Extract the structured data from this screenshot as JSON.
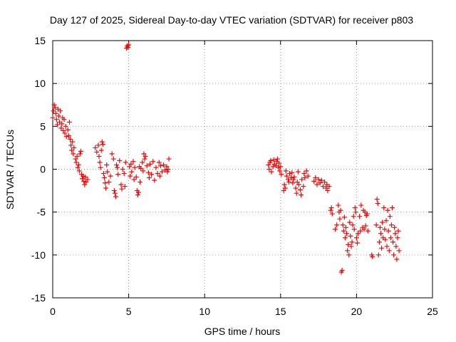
{
  "chart_data": {
    "type": "scatter",
    "title": "Day 127 of 2025, Sidereal Day-to-day VTEC variation (SDTVAR) for receiver p803",
    "xlabel": "GPS time / hours",
    "ylabel": "SDTVAR / TECUs",
    "xlim": [
      0,
      25
    ],
    "ylim": [
      -15,
      15
    ],
    "xticks": [
      0,
      5,
      10,
      15,
      20,
      25
    ],
    "xtick_labels": [
      "0",
      "5",
      "10",
      "15",
      "20",
      "25"
    ],
    "yticks": [
      -15,
      -10,
      -5,
      0,
      5,
      10,
      15
    ],
    "ytick_labels": [
      "-15",
      "-10",
      "-5",
      "0",
      "5",
      "10",
      "15"
    ],
    "grid": true,
    "marker": "+",
    "color": "#ff0000",
    "series": [
      {
        "name": "SDTVAR",
        "points": [
          [
            0.0,
            6.0
          ],
          [
            0.05,
            6.8
          ],
          [
            0.1,
            7.5
          ],
          [
            0.15,
            7.2
          ],
          [
            0.2,
            6.5
          ],
          [
            0.25,
            5.8
          ],
          [
            0.3,
            5.2
          ],
          [
            0.35,
            7.0
          ],
          [
            0.4,
            6.2
          ],
          [
            0.45,
            5.5
          ],
          [
            0.5,
            6.8
          ],
          [
            0.55,
            4.8
          ],
          [
            0.6,
            5.3
          ],
          [
            0.65,
            6.0
          ],
          [
            0.7,
            4.5
          ],
          [
            0.75,
            5.8
          ],
          [
            0.8,
            4.2
          ],
          [
            0.85,
            5.0
          ],
          [
            0.9,
            3.8
          ],
          [
            1.0,
            4.6
          ],
          [
            1.05,
            3.9
          ],
          [
            1.1,
            5.5
          ],
          [
            1.15,
            3.5
          ],
          [
            1.2,
            2.8
          ],
          [
            1.25,
            2.2
          ],
          [
            1.3,
            3.2
          ],
          [
            1.35,
            1.8
          ],
          [
            1.4,
            2.5
          ],
          [
            1.5,
            1.2
          ],
          [
            1.55,
            0.8
          ],
          [
            1.6,
            1.5
          ],
          [
            1.65,
            0.2
          ],
          [
            1.7,
            0.5
          ],
          [
            1.75,
            -0.2
          ],
          [
            1.8,
            1.8
          ],
          [
            1.85,
            2.1
          ],
          [
            1.9,
            -0.6
          ],
          [
            1.95,
            -1.1
          ],
          [
            2.0,
            -0.8
          ],
          [
            2.05,
            -1.4
          ],
          [
            2.1,
            -1.8
          ],
          [
            2.15,
            -0.9
          ],
          [
            2.2,
            -1.5
          ],
          [
            2.3,
            -1.2
          ],
          [
            2.8,
            2.5
          ],
          [
            2.9,
            2.0
          ],
          [
            3.0,
            2.8
          ],
          [
            3.05,
            1.5
          ],
          [
            3.1,
            0.8
          ],
          [
            3.15,
            0.2
          ],
          [
            3.2,
            2.2
          ],
          [
            3.25,
            3.2
          ],
          [
            3.3,
            2.9
          ],
          [
            3.35,
            -0.5
          ],
          [
            3.4,
            -1.0
          ],
          [
            3.45,
            -1.6
          ],
          [
            3.5,
            -2.2
          ],
          [
            3.55,
            0.5
          ],
          [
            3.6,
            -0.3
          ],
          [
            3.7,
            -1.5
          ],
          [
            3.8,
            -0.8
          ],
          [
            3.9,
            1.8
          ],
          [
            4.0,
            1.2
          ],
          [
            4.05,
            -2.5
          ],
          [
            4.1,
            -2.8
          ],
          [
            4.15,
            -3.2
          ],
          [
            4.2,
            0.5
          ],
          [
            4.25,
            0.2
          ],
          [
            4.3,
            -0.6
          ],
          [
            4.4,
            1.0
          ],
          [
            4.5,
            -1.8
          ],
          [
            4.55,
            -2.3
          ],
          [
            4.6,
            0.0
          ],
          [
            4.7,
            -0.5
          ],
          [
            4.75,
            -2.0
          ],
          [
            4.8,
            0.8
          ],
          [
            4.85,
            14.1
          ],
          [
            4.9,
            14.4
          ],
          [
            4.95,
            14.2
          ],
          [
            5.0,
            14.5
          ],
          [
            5.05,
            0.3
          ],
          [
            5.1,
            -0.8
          ],
          [
            5.15,
            0.6
          ],
          [
            5.2,
            -0.3
          ],
          [
            5.3,
            0.9
          ],
          [
            5.35,
            -1.2
          ],
          [
            5.4,
            0.2
          ],
          [
            5.5,
            -0.9
          ],
          [
            5.55,
            -2.5
          ],
          [
            5.6,
            -3.0
          ],
          [
            5.65,
            -2.7
          ],
          [
            5.7,
            0.3
          ],
          [
            5.75,
            -1.5
          ],
          [
            5.8,
            0.1
          ],
          [
            5.9,
            0.8
          ],
          [
            5.95,
            -0.2
          ],
          [
            6.0,
            1.8
          ],
          [
            6.05,
            1.2
          ],
          [
            6.1,
            1.5
          ],
          [
            6.2,
            0.4
          ],
          [
            6.3,
            -0.4
          ],
          [
            6.35,
            -1.0
          ],
          [
            6.4,
            0.6
          ],
          [
            6.5,
            -0.6
          ],
          [
            6.6,
            0.9
          ],
          [
            6.7,
            -1.3
          ],
          [
            6.8,
            0.2
          ],
          [
            6.9,
            -0.5
          ],
          [
            7.0,
            0.8
          ],
          [
            7.05,
            -0.8
          ],
          [
            7.1,
            0.4
          ],
          [
            7.2,
            -0.3
          ],
          [
            7.3,
            0.5
          ],
          [
            7.4,
            -0.1
          ],
          [
            7.5,
            0.3
          ],
          [
            7.55,
            -0.3
          ],
          [
            7.6,
            0.0
          ],
          [
            7.65,
            1.2
          ],
          [
            14.2,
            0.5
          ],
          [
            14.25,
            0.0
          ],
          [
            14.3,
            0.8
          ],
          [
            14.35,
            1.0
          ],
          [
            14.4,
            -0.3
          ],
          [
            14.5,
            0.3
          ],
          [
            14.55,
            1.1
          ],
          [
            14.6,
            0.6
          ],
          [
            14.7,
            0.4
          ],
          [
            14.75,
            0.9
          ],
          [
            14.8,
            1.2
          ],
          [
            14.85,
            0.2
          ],
          [
            14.9,
            0.7
          ],
          [
            14.95,
            -0.2
          ],
          [
            15.0,
            0.3
          ],
          [
            15.05,
            -0.6
          ],
          [
            15.2,
            -2.5
          ],
          [
            15.25,
            -1.8
          ],
          [
            15.3,
            -2.2
          ],
          [
            15.35,
            -0.2
          ],
          [
            15.4,
            -0.8
          ],
          [
            15.5,
            -1.2
          ],
          [
            15.55,
            -1.5
          ],
          [
            15.6,
            -0.5
          ],
          [
            15.7,
            -1.0
          ],
          [
            15.75,
            -0.4
          ],
          [
            15.8,
            -1.6
          ],
          [
            15.85,
            -1.2
          ],
          [
            15.9,
            -0.9
          ],
          [
            16.0,
            -2.2
          ],
          [
            16.05,
            -2.8
          ],
          [
            16.1,
            -1.5
          ],
          [
            16.15,
            -0.3
          ],
          [
            16.2,
            -1.8
          ],
          [
            16.3,
            -2.4
          ],
          [
            16.35,
            -3.0
          ],
          [
            16.4,
            -1.2
          ],
          [
            16.5,
            -2.0
          ],
          [
            16.55,
            -0.5
          ],
          [
            16.6,
            -1.0
          ],
          [
            16.7,
            -0.2
          ],
          [
            16.8,
            -0.8
          ],
          [
            17.2,
            -1.4
          ],
          [
            17.3,
            -1.0
          ],
          [
            17.4,
            -1.8
          ],
          [
            17.5,
            -1.2
          ],
          [
            17.6,
            -1.6
          ],
          [
            17.7,
            -1.3
          ],
          [
            17.8,
            -2.0
          ],
          [
            17.9,
            -1.5
          ],
          [
            18.0,
            -2.2
          ],
          [
            18.05,
            -1.8
          ],
          [
            18.1,
            -2.5
          ],
          [
            18.2,
            -2.0
          ],
          [
            18.3,
            -4.8
          ],
          [
            18.35,
            -4.5
          ],
          [
            18.4,
            -5.2
          ],
          [
            18.6,
            -7.0
          ],
          [
            18.7,
            -6.5
          ],
          [
            18.8,
            -4.2
          ],
          [
            18.85,
            -5.0
          ],
          [
            18.9,
            -5.8
          ],
          [
            18.95,
            -4.8
          ],
          [
            19.0,
            -12.0
          ],
          [
            19.05,
            -11.8
          ],
          [
            19.1,
            -6.5
          ],
          [
            19.15,
            -7.2
          ],
          [
            19.2,
            -5.6
          ],
          [
            19.25,
            -8.0
          ],
          [
            19.3,
            -6.8
          ],
          [
            19.35,
            -7.5
          ],
          [
            19.4,
            -9.5
          ],
          [
            19.45,
            -8.8
          ],
          [
            19.5,
            -10.0
          ],
          [
            19.55,
            -6.2
          ],
          [
            19.6,
            -7.8
          ],
          [
            19.65,
            -9.0
          ],
          [
            19.7,
            -8.5
          ],
          [
            19.75,
            -6.5
          ],
          [
            19.8,
            -5.5
          ],
          [
            19.85,
            -7.0
          ],
          [
            19.9,
            -4.5
          ],
          [
            19.95,
            -5.0
          ],
          [
            20.0,
            -8.0
          ],
          [
            20.05,
            -8.6
          ],
          [
            20.1,
            -7.5
          ],
          [
            20.2,
            -5.5
          ],
          [
            20.25,
            -7.2
          ],
          [
            20.3,
            -4.2
          ],
          [
            20.4,
            -6.8
          ],
          [
            20.45,
            -4.8
          ],
          [
            20.5,
            -7.0
          ],
          [
            20.55,
            -5.0
          ],
          [
            20.6,
            -6.6
          ],
          [
            20.65,
            -5.4
          ],
          [
            20.7,
            -5.2
          ],
          [
            20.75,
            -7.2
          ],
          [
            21.0,
            -10.0
          ],
          [
            21.05,
            -10.2
          ],
          [
            21.3,
            -6.5
          ],
          [
            21.35,
            -3.5
          ],
          [
            21.4,
            -4.0
          ],
          [
            21.45,
            -10.0
          ],
          [
            21.5,
            -8.5
          ],
          [
            21.55,
            -6.8
          ],
          [
            21.6,
            -7.5
          ],
          [
            21.65,
            -9.2
          ],
          [
            21.7,
            -6.2
          ],
          [
            21.75,
            -8.0
          ],
          [
            21.8,
            -4.5
          ],
          [
            21.85,
            -7.0
          ],
          [
            21.9,
            -8.2
          ],
          [
            21.95,
            -6.0
          ],
          [
            22.0,
            -9.0
          ],
          [
            22.05,
            -4.8
          ],
          [
            22.1,
            -7.2
          ],
          [
            22.15,
            -9.5
          ],
          [
            22.2,
            -5.5
          ],
          [
            22.25,
            -8.0
          ],
          [
            22.3,
            -6.5
          ],
          [
            22.35,
            -4.5
          ],
          [
            22.4,
            -8.5
          ],
          [
            22.45,
            -10.0
          ],
          [
            22.5,
            -6.8
          ],
          [
            22.55,
            -7.5
          ],
          [
            22.6,
            -9.0
          ],
          [
            22.65,
            -10.5
          ],
          [
            22.7,
            -8.0
          ],
          [
            22.75,
            -7.2
          ],
          [
            22.8,
            -9.5
          ]
        ]
      }
    ]
  }
}
